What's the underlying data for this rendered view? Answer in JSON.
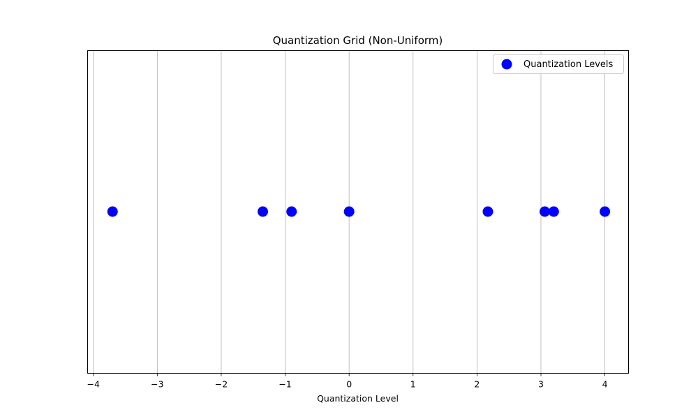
{
  "chart_data": {
    "type": "scatter",
    "title": "Quantization Grid (Non-Uniform)",
    "xlabel": "Quantization Level",
    "ylabel": "",
    "xlim": [
      -4.09,
      4.37
    ],
    "xticks": [
      -4,
      -3,
      -2,
      -1,
      0,
      1,
      2,
      3,
      4
    ],
    "xtick_labels": [
      "−4",
      "−3",
      "−2",
      "−1",
      "0",
      "1",
      "2",
      "3",
      "4"
    ],
    "grid": "vertical",
    "legend_position": "top-right",
    "series": [
      {
        "name": "Quantization Levels",
        "color": "#0000ff",
        "x": [
          -3.7,
          -1.35,
          -0.9,
          0.0,
          2.17,
          3.06,
          3.2,
          4.0
        ],
        "y": [
          0,
          0,
          0,
          0,
          0,
          0,
          0,
          0
        ]
      }
    ]
  }
}
